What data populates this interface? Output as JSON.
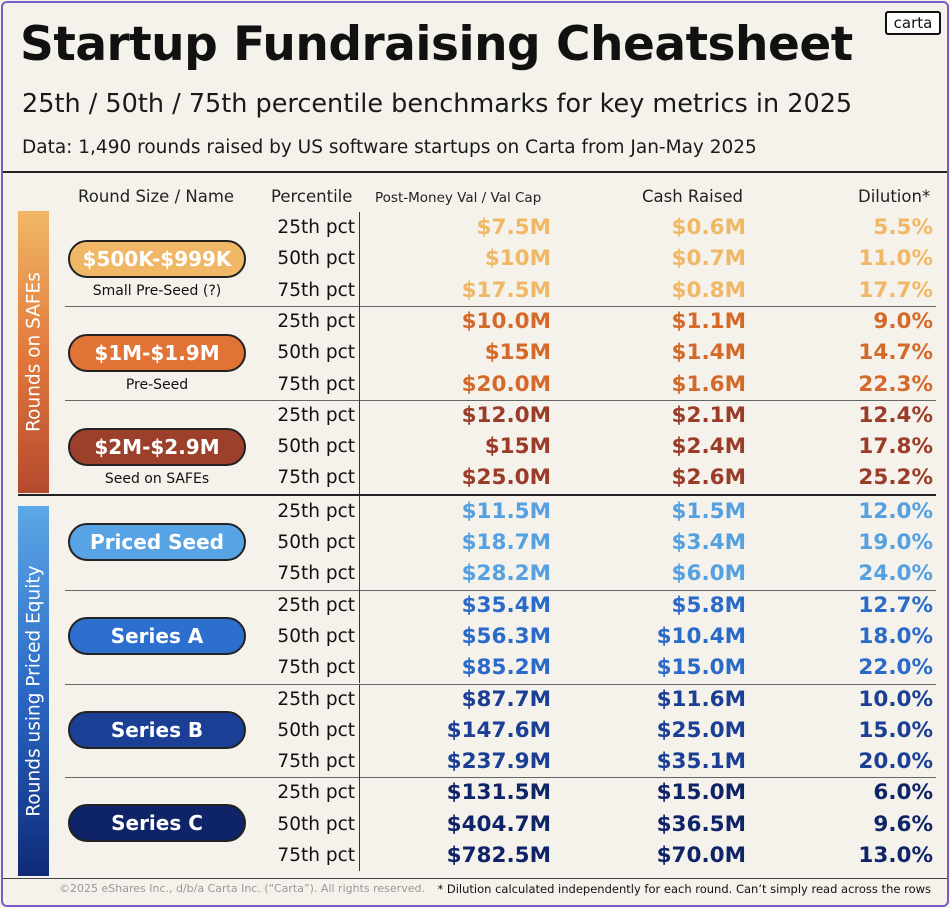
{
  "brand": {
    "logo_text": "carta"
  },
  "title": "Startup Fundraising Cheatsheet",
  "subtitle": "25th / 50th / 75th percentile benchmarks for key metrics in 2025",
  "source": "Data: 1,490 rounds raised by US software startups on Carta from Jan-May 2025",
  "headers": {
    "round": "Round Size / Name",
    "percentile": "Percentile",
    "valuation": "Post-Money Val / Val Cap",
    "cash": "Cash Raised",
    "dilution": "Dilution*"
  },
  "side_labels": {
    "safes": "Rounds on SAFEs",
    "equity": "Rounds using Priced Equity"
  },
  "percentile_labels": [
    "25th pct",
    "50th pct",
    "75th pct"
  ],
  "groups": [
    {
      "name": "$500K-$999K",
      "sub": "Small Pre-Seed (?)",
      "pill_color": "#f0b866",
      "text_color": "#f0b866",
      "rows": [
        {
          "val": "$7.5M",
          "cash": "$0.6M",
          "dil": "5.5%"
        },
        {
          "val": "$10M",
          "cash": "$0.7M",
          "dil": "11.0%"
        },
        {
          "val": "$17.5M",
          "cash": "$0.8M",
          "dil": "17.7%"
        }
      ]
    },
    {
      "name": "$1M-$1.9M",
      "sub": "Pre-Seed",
      "pill_color": "#e27336",
      "text_color": "#d4692a",
      "rows": [
        {
          "val": "$10.0M",
          "cash": "$1.1M",
          "dil": "9.0%"
        },
        {
          "val": "$15M",
          "cash": "$1.4M",
          "dil": "14.7%"
        },
        {
          "val": "$20.0M",
          "cash": "$1.6M",
          "dil": "22.3%"
        }
      ]
    },
    {
      "name": "$2M-$2.9M",
      "sub": "Seed on SAFEs",
      "pill_color": "#9c3f2b",
      "text_color": "#9a3c28",
      "rows": [
        {
          "val": "$12.0M",
          "cash": "$2.1M",
          "dil": "12.4%"
        },
        {
          "val": "$15M",
          "cash": "$2.4M",
          "dil": "17.8%"
        },
        {
          "val": "$25.0M",
          "cash": "$2.6M",
          "dil": "25.2%"
        }
      ]
    },
    {
      "name": "Priced Seed",
      "sub": "",
      "pill_color": "#57a3e4",
      "text_color": "#55a0e0",
      "rows": [
        {
          "val": "$11.5M",
          "cash": "$1.5M",
          "dil": "12.0%"
        },
        {
          "val": "$18.7M",
          "cash": "$3.4M",
          "dil": "19.0%"
        },
        {
          "val": "$28.2M",
          "cash": "$6.0M",
          "dil": "24.0%"
        }
      ]
    },
    {
      "name": "Series A",
      "sub": "",
      "pill_color": "#2c6fce",
      "text_color": "#2a6ac8",
      "rows": [
        {
          "val": "$35.4M",
          "cash": "$5.8M",
          "dil": "12.7%"
        },
        {
          "val": "$56.3M",
          "cash": "$10.4M",
          "dil": "18.0%"
        },
        {
          "val": "$85.2M",
          "cash": "$15.0M",
          "dil": "22.0%"
        }
      ]
    },
    {
      "name": "Series B",
      "sub": "",
      "pill_color": "#1a3f95",
      "text_color": "#1a3f95",
      "rows": [
        {
          "val": "$87.7M",
          "cash": "$11.6M",
          "dil": "10.0%"
        },
        {
          "val": "$147.6M",
          "cash": "$25.0M",
          "dil": "15.0%"
        },
        {
          "val": "$237.9M",
          "cash": "$35.1M",
          "dil": "20.0%"
        }
      ]
    },
    {
      "name": "Series C",
      "sub": "",
      "pill_color": "#0f2468",
      "text_color": "#0f2468",
      "rows": [
        {
          "val": "$131.5M",
          "cash": "$15.0M",
          "dil": "6.0%"
        },
        {
          "val": "$404.7M",
          "cash": "$36.5M",
          "dil": "9.6%"
        },
        {
          "val": "$782.5M",
          "cash": "$70.0M",
          "dil": "13.0%"
        }
      ]
    }
  ],
  "footer": {
    "copyright": "©2025 eShares Inc., d/b/a Carta Inc. (“Carta”). All rights reserved.",
    "note": "* Dilution calculated independently for each round. Can’t simply read across the rows"
  }
}
